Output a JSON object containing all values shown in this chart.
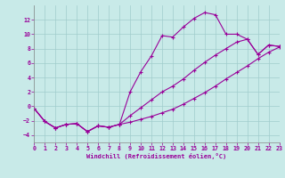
{
  "xlabel": "Windchill (Refroidissement éolien,°C)",
  "xlim": [
    0,
    23
  ],
  "ylim": [
    -5,
    14
  ],
  "yticks": [
    -4,
    -2,
    0,
    2,
    4,
    6,
    8,
    10,
    12
  ],
  "xticks": [
    0,
    1,
    2,
    3,
    4,
    5,
    6,
    7,
    8,
    9,
    10,
    11,
    12,
    13,
    14,
    15,
    16,
    17,
    18,
    19,
    20,
    21,
    22,
    23
  ],
  "background_color": "#c8eae8",
  "line_color": "#990099",
  "grid_color": "#a0cccc",
  "s1_x": [
    0,
    1,
    2,
    3,
    4,
    5,
    6,
    7,
    8,
    9,
    10,
    11,
    12,
    13,
    14,
    15,
    16,
    17,
    18,
    19,
    20,
    21,
    22,
    23
  ],
  "s1_y": [
    -0.3,
    -2.1,
    -3.0,
    -2.5,
    -2.4,
    -3.5,
    -2.7,
    -2.9,
    -2.5,
    -2.2,
    -1.8,
    -1.4,
    -0.9,
    -0.4,
    0.3,
    1.1,
    1.9,
    2.8,
    3.8,
    4.7,
    5.6,
    6.6,
    7.5,
    8.2
  ],
  "s2_x": [
    0,
    1,
    2,
    3,
    4,
    5,
    6,
    7,
    8,
    9,
    10,
    11,
    12,
    13,
    14,
    15,
    16,
    17,
    18,
    19,
    20,
    21,
    22,
    23
  ],
  "s2_y": [
    -0.3,
    -2.1,
    -3.0,
    -2.5,
    -2.4,
    -3.5,
    -2.7,
    -2.9,
    -2.5,
    2.0,
    4.8,
    7.0,
    9.8,
    9.6,
    11.0,
    12.2,
    13.0,
    12.7,
    10.0,
    10.0,
    9.3,
    7.2,
    8.5,
    8.3
  ],
  "s3_x": [
    0,
    1,
    2,
    3,
    4,
    5,
    6,
    7,
    8,
    9,
    10,
    11,
    12,
    13,
    14,
    15,
    16,
    17,
    18,
    19,
    20,
    21,
    22,
    23
  ],
  "s3_y": [
    -0.3,
    -2.1,
    -3.0,
    -2.5,
    -2.4,
    -3.5,
    -2.7,
    -2.9,
    -2.5,
    -1.3,
    -0.2,
    0.9,
    2.0,
    2.8,
    3.8,
    5.0,
    6.1,
    7.1,
    8.0,
    8.9,
    9.3,
    7.2,
    8.5,
    8.3
  ]
}
